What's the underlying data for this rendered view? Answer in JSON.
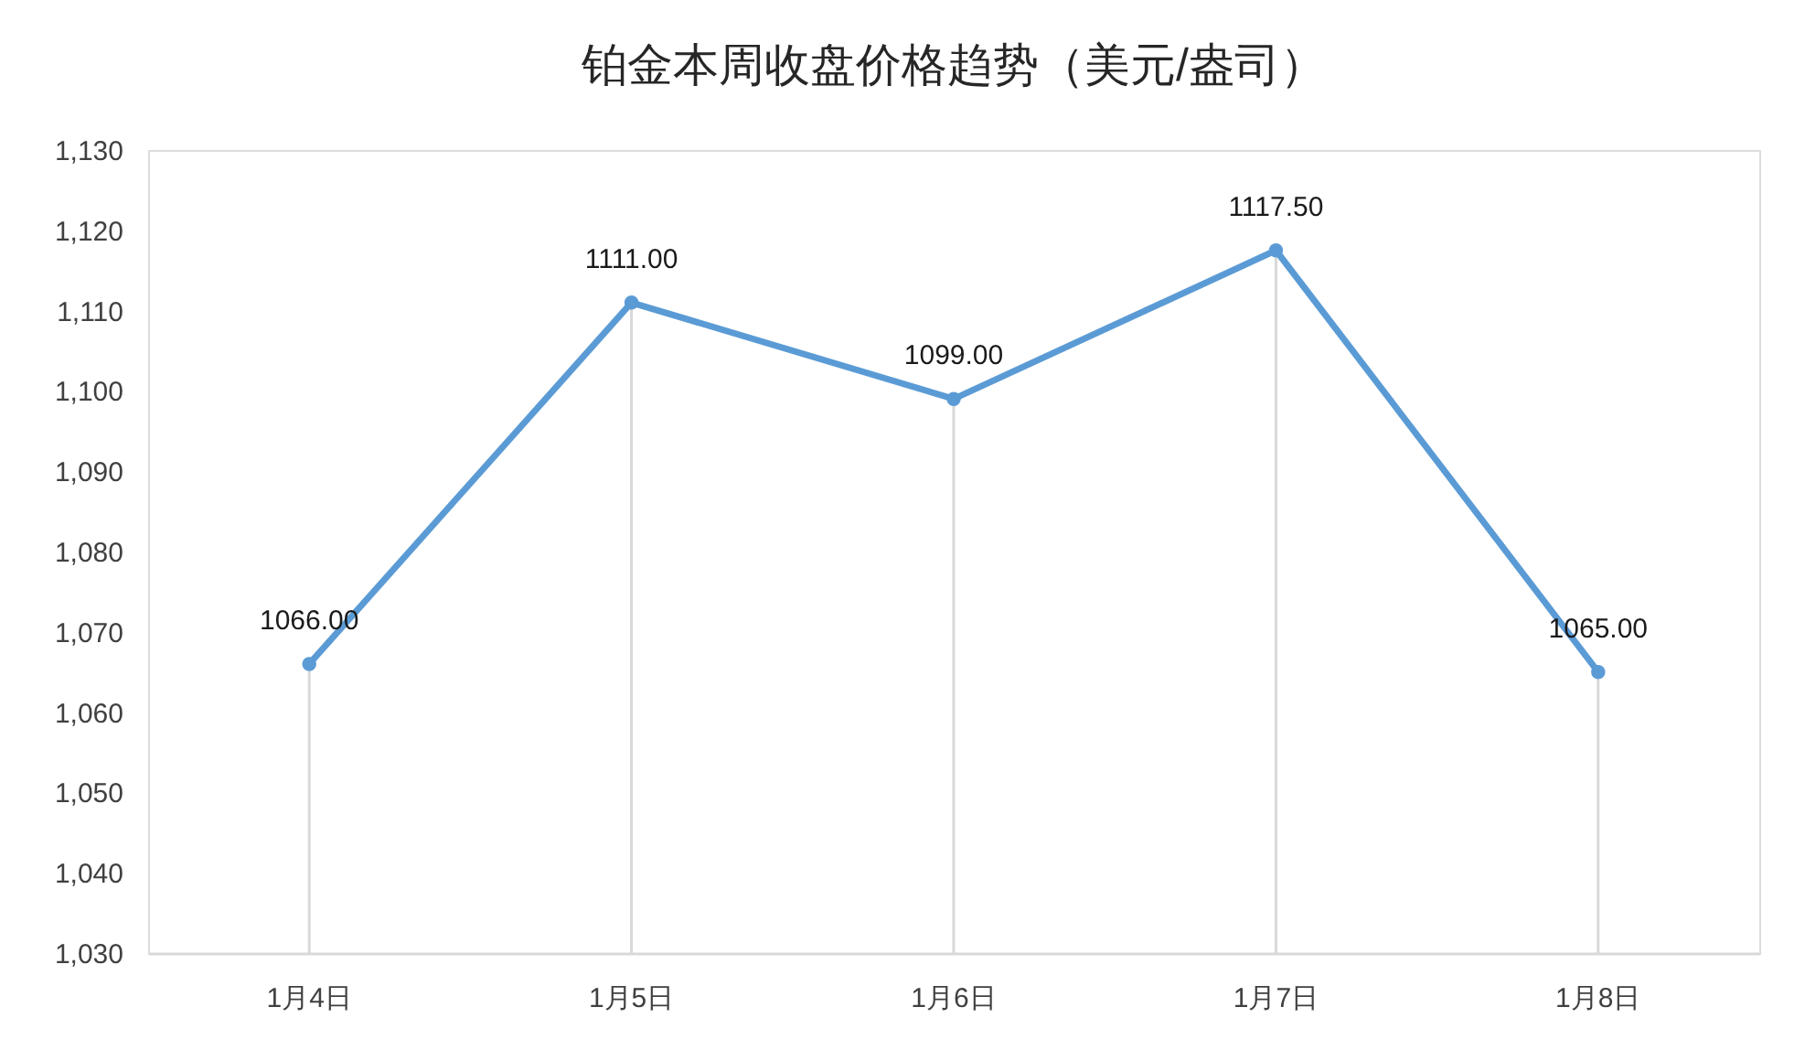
{
  "chart_data": {
    "type": "line",
    "title": "铂金本周收盘价格趋势（美元/盎司）",
    "categories": [
      "1月4日",
      "1月5日",
      "1月6日",
      "1月7日",
      "1月8日"
    ],
    "values": [
      1066,
      1111,
      1099,
      1117.5,
      1065
    ],
    "color": "#5b9bd5",
    "value_labels": [
      "1066.00",
      "1111.00",
      "1099.00",
      "1117.50",
      "1065.00"
    ],
    "ylim": [
      1030,
      1130
    ],
    "yticks": [
      {
        "value": 1030,
        "label": "1,030"
      },
      {
        "value": 1040,
        "label": "1,040"
      },
      {
        "value": 1050,
        "label": "1,050"
      },
      {
        "value": 1060,
        "label": "1,060"
      },
      {
        "value": 1070,
        "label": "1,070"
      },
      {
        "value": 1080,
        "label": "1,080"
      },
      {
        "value": 1090,
        "label": "1,090"
      },
      {
        "value": 1100,
        "label": "1,100"
      },
      {
        "value": 1110,
        "label": "1,110"
      },
      {
        "value": 1120,
        "label": "1,120"
      },
      {
        "value": 1130,
        "label": "1,130"
      }
    ],
    "grid": "x",
    "marker": "circle",
    "line_style": "solid"
  }
}
